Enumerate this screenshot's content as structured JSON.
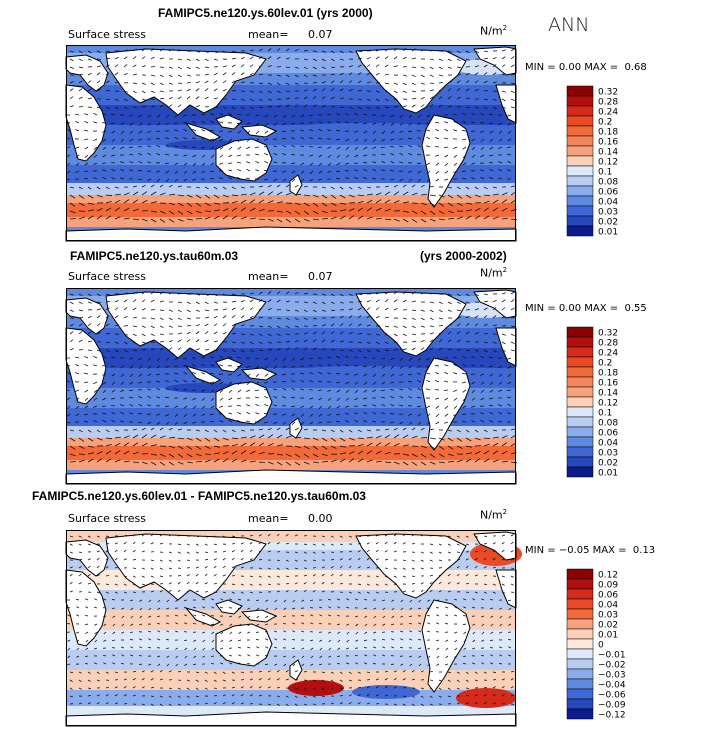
{
  "season_label": "ANN",
  "units": "N/m",
  "units_exp": "2",
  "mean_label": "mean=",
  "min_label": "MIN =",
  "max_label": "MAX =",
  "panels": [
    {
      "title": "FAMIPC5.ne120.ys.60lev.01 (yrs 2000)",
      "title_right": "",
      "variable": "Surface stress",
      "mean": "0.07",
      "min": "0.00",
      "max": "0.68",
      "levels": [
        "0.32",
        "0.28",
        "0.24",
        "0.2",
        "0.18",
        "0.16",
        "0.14",
        "0.12",
        "0.1",
        "0.08",
        "0.06",
        "0.04",
        "0.03",
        "0.02",
        "0.01"
      ],
      "colors": [
        "#8b0000",
        "#b30f0f",
        "#d42b1b",
        "#ea4b26",
        "#f2693a",
        "#f4845a",
        "#f6a27c",
        "#fad1b8",
        "#dde8f8",
        "#b9cdf2",
        "#8aacec",
        "#5e8ae0",
        "#3f68d4",
        "#2747bd",
        "#0d1c8c"
      ]
    },
    {
      "title": "FAMIPC5.ne120.ys.tau60m.03",
      "title_right": "(yrs 2000-2002)",
      "variable": "Surface stress",
      "mean": "0.07",
      "min": "0.00",
      "max": "0.55",
      "levels": [
        "0.32",
        "0.28",
        "0.24",
        "0.2",
        "0.18",
        "0.16",
        "0.14",
        "0.12",
        "0.1",
        "0.08",
        "0.06",
        "0.04",
        "0.03",
        "0.02",
        "0.01"
      ],
      "colors": [
        "#8b0000",
        "#b30f0f",
        "#d42b1b",
        "#ea4b26",
        "#f2693a",
        "#f4845a",
        "#f6a27c",
        "#fad1b8",
        "#dde8f8",
        "#b9cdf2",
        "#8aacec",
        "#5e8ae0",
        "#3f68d4",
        "#2747bd",
        "#0d1c8c"
      ]
    },
    {
      "title": "FAMIPC5.ne120.ys.60lev.01 - FAMIPC5.ne120.ys.tau60m.03",
      "title_right": "",
      "variable": "Surface stress",
      "mean": "0.00",
      "min": "−0.05",
      "max": "0.13",
      "levels": [
        "0.12",
        "0.09",
        "0.06",
        "0.04",
        "0.03",
        "0.02",
        "0.01",
        "0",
        "−0.01",
        "−0.02",
        "−0.03",
        "−0.04",
        "−0.06",
        "−0.09",
        "−0.12"
      ],
      "colors": [
        "#8b0000",
        "#b30f0f",
        "#d42b1b",
        "#ea4b26",
        "#f2693a",
        "#f6a27c",
        "#fad1b8",
        "#fde9dc",
        "#dde8f8",
        "#b9cdf2",
        "#8aacec",
        "#5e8ae0",
        "#3f68d4",
        "#2747bd",
        "#0d1c8c"
      ]
    }
  ]
}
